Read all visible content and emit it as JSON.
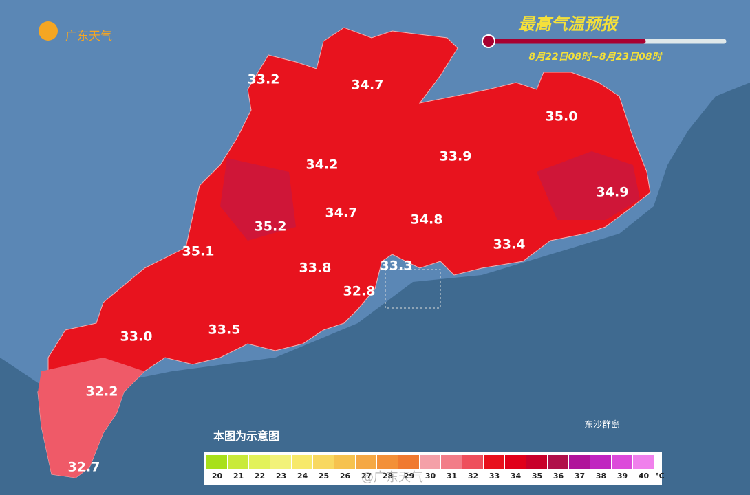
{
  "header": {
    "logo": "广东天气",
    "title": "最高气温预报",
    "subtitle": "8月22日08时~8月23日08时"
  },
  "labels": [
    "33.2",
    "34.7",
    "35.0",
    "34.2",
    "33.9",
    "34.9",
    "34.7",
    "35.2",
    "34.8",
    "35.1",
    "33.4",
    "33.8",
    "33.3",
    "32.8",
    "33.0",
    "33.5",
    "32.2",
    "32.7"
  ],
  "islands": "东沙群岛",
  "note": "本图为示意图",
  "watermark": "@广东天气",
  "legend": {
    "values": [
      20,
      21,
      22,
      23,
      24,
      25,
      26,
      27,
      28,
      29,
      30,
      31,
      32,
      33,
      34,
      35,
      36,
      37,
      38,
      39,
      40
    ],
    "unit": "℃",
    "colors": [
      "#a8e01a",
      "#c9ea3a",
      "#e2f25a",
      "#f2f27a",
      "#f7e96a",
      "#f8d860",
      "#f6c24e",
      "#f5a844",
      "#f39038",
      "#f07a30",
      "#f4a0a8",
      "#f27d88",
      "#ee4f5c",
      "#e8101c",
      "#e0001a",
      "#c8002a",
      "#b0104a",
      "#b0149a",
      "#c025c0",
      "#dc4ada",
      "#f080ec"
    ]
  }
}
